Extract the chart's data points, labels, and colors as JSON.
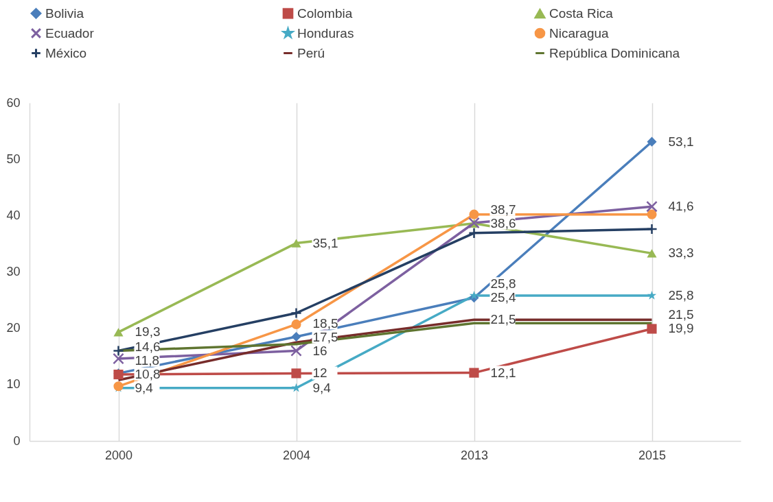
{
  "chart_data": {
    "type": "line",
    "categories": [
      "2000",
      "2004",
      "2013",
      "2015"
    ],
    "series": [
      {
        "name": "Bolivia",
        "color": "#4a7ebb",
        "marker": "diamond",
        "values": [
          12.0,
          18.5,
          25.4,
          53.1
        ],
        "value_labels": [
          null,
          "18,5",
          "25,4",
          "53,1"
        ]
      },
      {
        "name": "Colombia",
        "color": "#be4b48",
        "marker": "square",
        "values": [
          11.8,
          12.0,
          12.1,
          19.9
        ],
        "value_labels": [
          "11,8",
          "12",
          "12,1",
          "19,9"
        ]
      },
      {
        "name": "Costa Rica",
        "color": "#98b954",
        "marker": "triangle",
        "values": [
          19.3,
          35.1,
          38.6,
          33.3
        ],
        "value_labels": [
          "19,3",
          "35,1",
          "38,6",
          "33,3"
        ]
      },
      {
        "name": "Ecuador",
        "color": "#7d60a0",
        "marker": "cross",
        "values": [
          14.6,
          16.0,
          38.7,
          41.6
        ],
        "value_labels": [
          "14,6",
          "16",
          "38,7",
          "41,6"
        ]
      },
      {
        "name": "Honduras",
        "color": "#46aac5",
        "marker": "star",
        "values": [
          9.4,
          9.4,
          25.8,
          25.8
        ],
        "value_labels": [
          "9,4",
          "9,4",
          "25,8",
          "25,8"
        ]
      },
      {
        "name": "Nicaragua",
        "color": "#f79646",
        "marker": "circle",
        "values": [
          9.7,
          20.7,
          40.2,
          40.2
        ]
      },
      {
        "name": "México",
        "color": "#253f63",
        "marker": "plus",
        "values": [
          16.0,
          22.7,
          36.9,
          37.6
        ]
      },
      {
        "name": "Perú",
        "color": "#772c2a",
        "marker": "none",
        "values": [
          10.8,
          17.5,
          21.5,
          21.5
        ],
        "value_labels": [
          "10,8",
          "17,5",
          "21,5",
          "21,5"
        ]
      },
      {
        "name": "República Dominicana",
        "color": "#5f7530",
        "marker": "none",
        "values": [
          16.0,
          17.2,
          20.9,
          20.9
        ]
      }
    ],
    "ylim": [
      0,
      60
    ],
    "yticks": [
      0,
      10,
      20,
      30,
      40,
      50,
      60
    ],
    "grid": "x",
    "legend": "top"
  }
}
